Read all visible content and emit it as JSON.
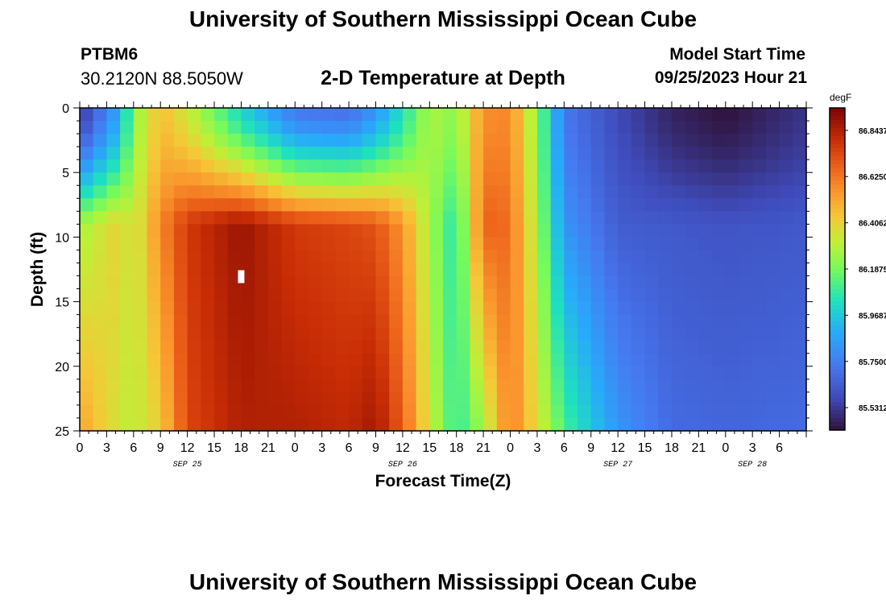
{
  "header": {
    "title": "University of Southern Mississippi Ocean Cube",
    "station_id": "PTBM6",
    "station_coords": "30.2120N  88.5050W",
    "plot_title": "2-D Temperature at Depth",
    "model_start_label": "Model Start Time",
    "model_start_value": "09/25/2023 Hour 21"
  },
  "footer": {
    "title": "University of Southern Mississippi Ocean Cube"
  },
  "chart_data": {
    "type": "heatmap",
    "title": "2-D Temperature at Depth",
    "xlabel": "Forecast Time(Z)",
    "ylabel": "Depth (ft)",
    "x_hours_range": [
      0,
      81
    ],
    "x_tick_step_hours": 3,
    "x_tick_labels": [
      "0",
      "3",
      "6",
      "9",
      "12",
      "15",
      "18",
      "21",
      "0",
      "3",
      "6",
      "9",
      "12",
      "15",
      "18",
      "21",
      "0",
      "3",
      "6",
      "9",
      "12",
      "15",
      "18",
      "21",
      "0",
      "3",
      "6"
    ],
    "date_labels": [
      {
        "text": "SEP 25",
        "hour": 12
      },
      {
        "text": "SEP 26",
        "hour": 36
      },
      {
        "text": "SEP 27",
        "hour": 60
      },
      {
        "text": "SEP 28",
        "hour": 75
      }
    ],
    "y_depth_range": [
      0,
      25
    ],
    "y_ticks": [
      0,
      5,
      10,
      15,
      20,
      25
    ],
    "y_tick_labels": [
      "0",
      "5",
      "10",
      "15",
      "20",
      "25"
    ],
    "colorbar": {
      "unit": "degF",
      "range": [
        85.425,
        86.95
      ],
      "tick_values": [
        86.8437,
        86.625,
        86.4062,
        86.1875,
        85.9687,
        85.75,
        85.5312
      ],
      "tick_labels": [
        "86.8437",
        "86.6250",
        "86.4062",
        "86.1875",
        "85.9687",
        "85.7500",
        "85.5312"
      ]
    },
    "grid_cols": 54,
    "grid_rows": 25,
    "temperature_norm_field": [
      {
        "hour": 0,
        "surface": 0.06,
        "mid": 0.55,
        "deep": 0.72
      },
      {
        "hour": 4.5,
        "surface": 0.3,
        "mid": 0.65,
        "deep": 0.6
      },
      {
        "hour": 6,
        "surface": 0.52,
        "mid": 0.58,
        "deep": 0.58
      },
      {
        "hour": 9,
        "surface": 0.68,
        "mid": 0.76,
        "deep": 0.65
      },
      {
        "hour": 12,
        "surface": 0.6,
        "mid": 0.88,
        "deep": 0.86
      },
      {
        "hour": 18,
        "surface": 0.38,
        "mid": 0.96,
        "deep": 0.93
      },
      {
        "hour": 24,
        "surface": 0.2,
        "mid": 0.88,
        "deep": 0.93
      },
      {
        "hour": 30,
        "surface": 0.18,
        "mid": 0.86,
        "deep": 0.91
      },
      {
        "hour": 33,
        "surface": 0.26,
        "mid": 0.84,
        "deep": 0.95
      },
      {
        "hour": 36,
        "surface": 0.4,
        "mid": 0.74,
        "deep": 0.82
      },
      {
        "hour": 39,
        "surface": 0.56,
        "mid": 0.55,
        "deep": 0.6
      },
      {
        "hour": 42,
        "surface": 0.52,
        "mid": 0.4,
        "deep": 0.42
      },
      {
        "hour": 45,
        "surface": 0.75,
        "mid": 0.82,
        "deep": 0.55
      },
      {
        "hour": 48,
        "surface": 0.76,
        "mid": 0.8,
        "deep": 0.78
      },
      {
        "hour": 51,
        "surface": 0.52,
        "mid": 0.55,
        "deep": 0.62
      },
      {
        "hour": 54,
        "surface": 0.2,
        "mid": 0.26,
        "deep": 0.45
      },
      {
        "hour": 60,
        "surface": 0.1,
        "mid": 0.14,
        "deep": 0.26
      },
      {
        "hour": 66,
        "surface": 0.03,
        "mid": 0.13,
        "deep": 0.17
      },
      {
        "hour": 72,
        "surface": 0.0,
        "mid": 0.12,
        "deep": 0.16
      },
      {
        "hour": 81,
        "surface": 0.06,
        "mid": 0.13,
        "deep": 0.17
      }
    ],
    "marker_hint": {
      "hour": 18,
      "depth_ft": 13
    }
  }
}
